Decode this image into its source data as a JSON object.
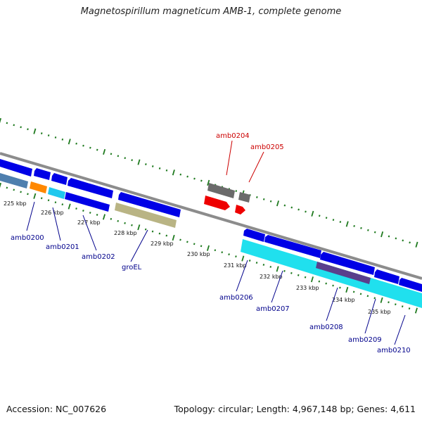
{
  "title": "Magnetospirillum magneticum AMB-1, complete genome",
  "footer": {
    "accession": "Accession: NC_007626",
    "summary": "Topology: circular; Length: 4,967,148 bp; Genes: 4,611"
  },
  "colors": {
    "backbone": "#8c8c8c",
    "tick": "#1f7a1f",
    "gene_blue": "#0000e6",
    "label_blue": "#00008b",
    "label_red": "#cc0000",
    "orange": "#ff8800",
    "steelblue": "#4e7fae",
    "cyan": "#20e0ee",
    "khaki": "#b9b484",
    "gray": "#6b6b6b",
    "red": "#ee0000",
    "purple": "#5a3f8c"
  },
  "ruler": [
    {
      "label": "225 kbp"
    },
    {
      "label": "226 kbp"
    },
    {
      "label": "227 kbp"
    },
    {
      "label": "228 kbp"
    },
    {
      "label": "229 kbp"
    },
    {
      "label": "230 kbp"
    },
    {
      "label": "231 kbp"
    },
    {
      "label": "232 kbp"
    },
    {
      "label": "233 kbp"
    },
    {
      "label": "234 kbp"
    },
    {
      "label": "235 kbp"
    }
  ],
  "gene_labels": {
    "amb0200": "amb0200",
    "amb0201": "amb0201",
    "amb0202": "amb0202",
    "groEL": "groEL",
    "amb0204": "amb0204",
    "amb0205": "amb0205",
    "amb0206": "amb0206",
    "amb0207": "amb0207",
    "amb0208": "amb0208",
    "amb0209": "amb0209",
    "amb0210": "amb0210"
  }
}
